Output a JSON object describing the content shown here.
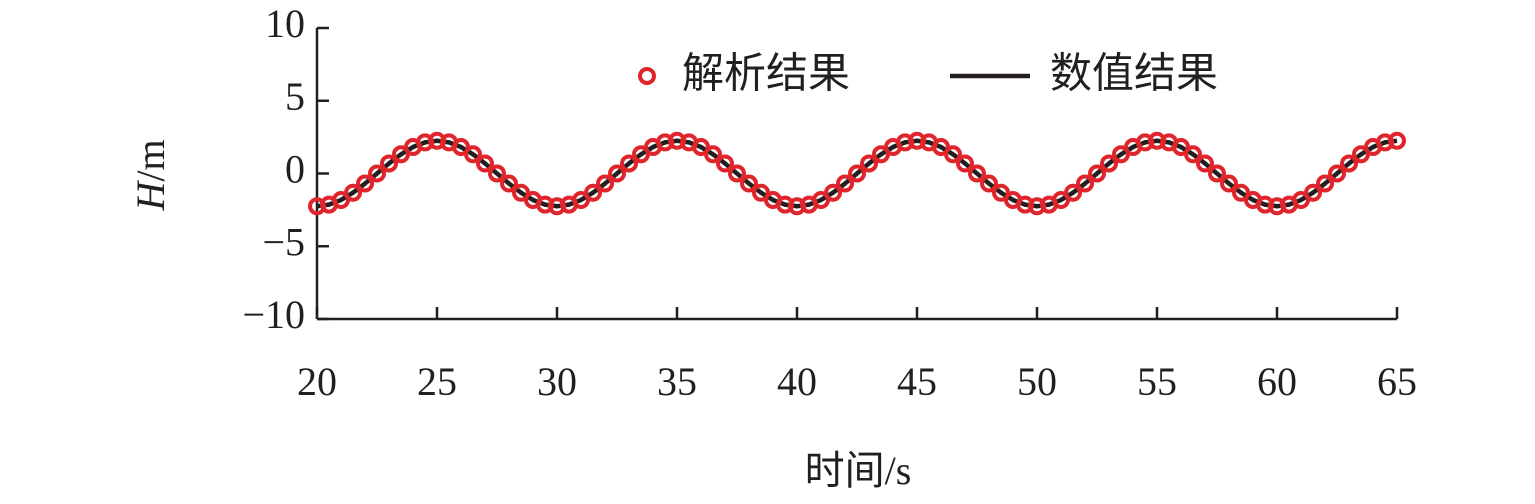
{
  "chart_data": {
    "type": "line",
    "xlabel": "时间/s",
    "ylabel_symbol": "H",
    "ylabel_unit": "/m",
    "xlim": [
      20,
      65
    ],
    "ylim": [
      -10,
      10
    ],
    "xticks": [
      20,
      25,
      30,
      35,
      40,
      45,
      50,
      55,
      60,
      65
    ],
    "yticks": [
      10,
      5,
      0,
      -5,
      -10
    ],
    "x_tick_labels": [
      "20",
      "25",
      "30",
      "35",
      "40",
      "45",
      "50",
      "55",
      "60",
      "65"
    ],
    "y_tick_labels": [
      "10",
      "5",
      "0",
      "−5",
      "−10"
    ],
    "grid": false,
    "legend": {
      "position": "top-right",
      "orientation": "horizontal"
    },
    "series": [
      {
        "name": "解析结果",
        "style": "markers",
        "marker": "circle-open",
        "color": "#e0242b",
        "x": [
          20,
          20.5,
          21,
          21.5,
          22,
          22.5,
          23,
          23.5,
          24,
          24.5,
          25,
          25.5,
          26,
          26.5,
          27,
          27.5,
          28,
          28.5,
          29,
          29.5,
          30,
          30.5,
          31,
          31.5,
          32,
          32.5,
          33,
          33.5,
          34,
          34.5,
          35,
          35.5,
          36,
          36.5,
          37,
          37.5,
          38,
          38.5,
          39,
          39.5,
          40,
          40.5,
          41,
          41.5,
          42,
          42.5,
          43,
          43.5,
          44,
          44.5,
          45,
          45.5,
          46,
          46.5,
          47,
          47.5,
          48,
          48.5,
          49,
          49.5,
          50,
          50.5,
          51,
          51.5,
          52,
          52.5,
          53,
          53.5,
          54,
          54.5,
          55,
          55.5,
          56,
          56.5,
          57,
          57.5,
          58,
          58.5,
          59,
          59.5,
          60,
          60.5,
          61,
          61.5,
          62,
          62.5,
          63,
          63.5,
          64,
          64.5,
          65
        ],
        "y": [
          -2.25,
          -2.14,
          -1.82,
          -1.32,
          -0.69,
          0,
          0.69,
          1.32,
          1.82,
          2.14,
          2.25,
          2.14,
          1.82,
          1.32,
          0.69,
          0,
          -0.69,
          -1.32,
          -1.82,
          -2.14,
          -2.25,
          -2.14,
          -1.82,
          -1.32,
          -0.69,
          0,
          0.69,
          1.32,
          1.82,
          2.14,
          2.25,
          2.14,
          1.82,
          1.32,
          0.69,
          0,
          -0.69,
          -1.32,
          -1.82,
          -2.14,
          -2.25,
          -2.14,
          -1.82,
          -1.32,
          -0.69,
          0,
          0.69,
          1.32,
          1.82,
          2.14,
          2.25,
          2.14,
          1.82,
          1.32,
          0.69,
          0,
          -0.69,
          -1.32,
          -1.82,
          -2.14,
          -2.25,
          -2.14,
          -1.82,
          -1.32,
          -0.69,
          0,
          0.69,
          1.32,
          1.82,
          2.14,
          2.25,
          2.14,
          1.82,
          1.32,
          0.69,
          0,
          -0.69,
          -1.32,
          -1.82,
          -2.14,
          -2.25,
          -2.14,
          -1.82,
          -1.32,
          -0.69,
          0,
          0.69,
          1.32,
          1.82,
          2.14,
          2.25
        ]
      },
      {
        "name": "数值结果",
        "style": "line",
        "color": "#231f20",
        "x": [
          20,
          20.5,
          21,
          21.5,
          22,
          22.5,
          23,
          23.5,
          24,
          24.5,
          25,
          25.5,
          26,
          26.5,
          27,
          27.5,
          28,
          28.5,
          29,
          29.5,
          30,
          30.5,
          31,
          31.5,
          32,
          32.5,
          33,
          33.5,
          34,
          34.5,
          35,
          35.5,
          36,
          36.5,
          37,
          37.5,
          38,
          38.5,
          39,
          39.5,
          40,
          40.5,
          41,
          41.5,
          42,
          42.5,
          43,
          43.5,
          44,
          44.5,
          45,
          45.5,
          46,
          46.5,
          47,
          47.5,
          48,
          48.5,
          49,
          49.5,
          50,
          50.5,
          51,
          51.5,
          52,
          52.5,
          53,
          53.5,
          54,
          54.5,
          55,
          55.5,
          56,
          56.5,
          57,
          57.5,
          58,
          58.5,
          59,
          59.5,
          60,
          60.5,
          61,
          61.5,
          62,
          62.5,
          63,
          63.5,
          64,
          64.5,
          65
        ],
        "y": [
          -2.25,
          -2.14,
          -1.82,
          -1.32,
          -0.69,
          0,
          0.69,
          1.32,
          1.82,
          2.14,
          2.25,
          2.14,
          1.82,
          1.32,
          0.69,
          0,
          -0.69,
          -1.32,
          -1.82,
          -2.14,
          -2.25,
          -2.14,
          -1.82,
          -1.32,
          -0.69,
          0,
          0.69,
          1.32,
          1.82,
          2.14,
          2.25,
          2.14,
          1.82,
          1.32,
          0.69,
          0,
          -0.69,
          -1.32,
          -1.82,
          -2.14,
          -2.25,
          -2.14,
          -1.82,
          -1.32,
          -0.69,
          0,
          0.69,
          1.32,
          1.82,
          2.14,
          2.25,
          2.14,
          1.82,
          1.32,
          0.69,
          0,
          -0.69,
          -1.32,
          -1.82,
          -2.14,
          -2.25,
          -2.14,
          -1.82,
          -1.32,
          -0.69,
          0,
          0.69,
          1.32,
          1.82,
          2.14,
          2.25,
          2.14,
          1.82,
          1.32,
          0.69,
          0,
          -0.69,
          -1.32,
          -1.82,
          -2.14,
          -2.25,
          -2.14,
          -1.82,
          -1.32,
          -0.69,
          0,
          0.69,
          1.32,
          1.82,
          2.14,
          2.25
        ]
      }
    ]
  }
}
